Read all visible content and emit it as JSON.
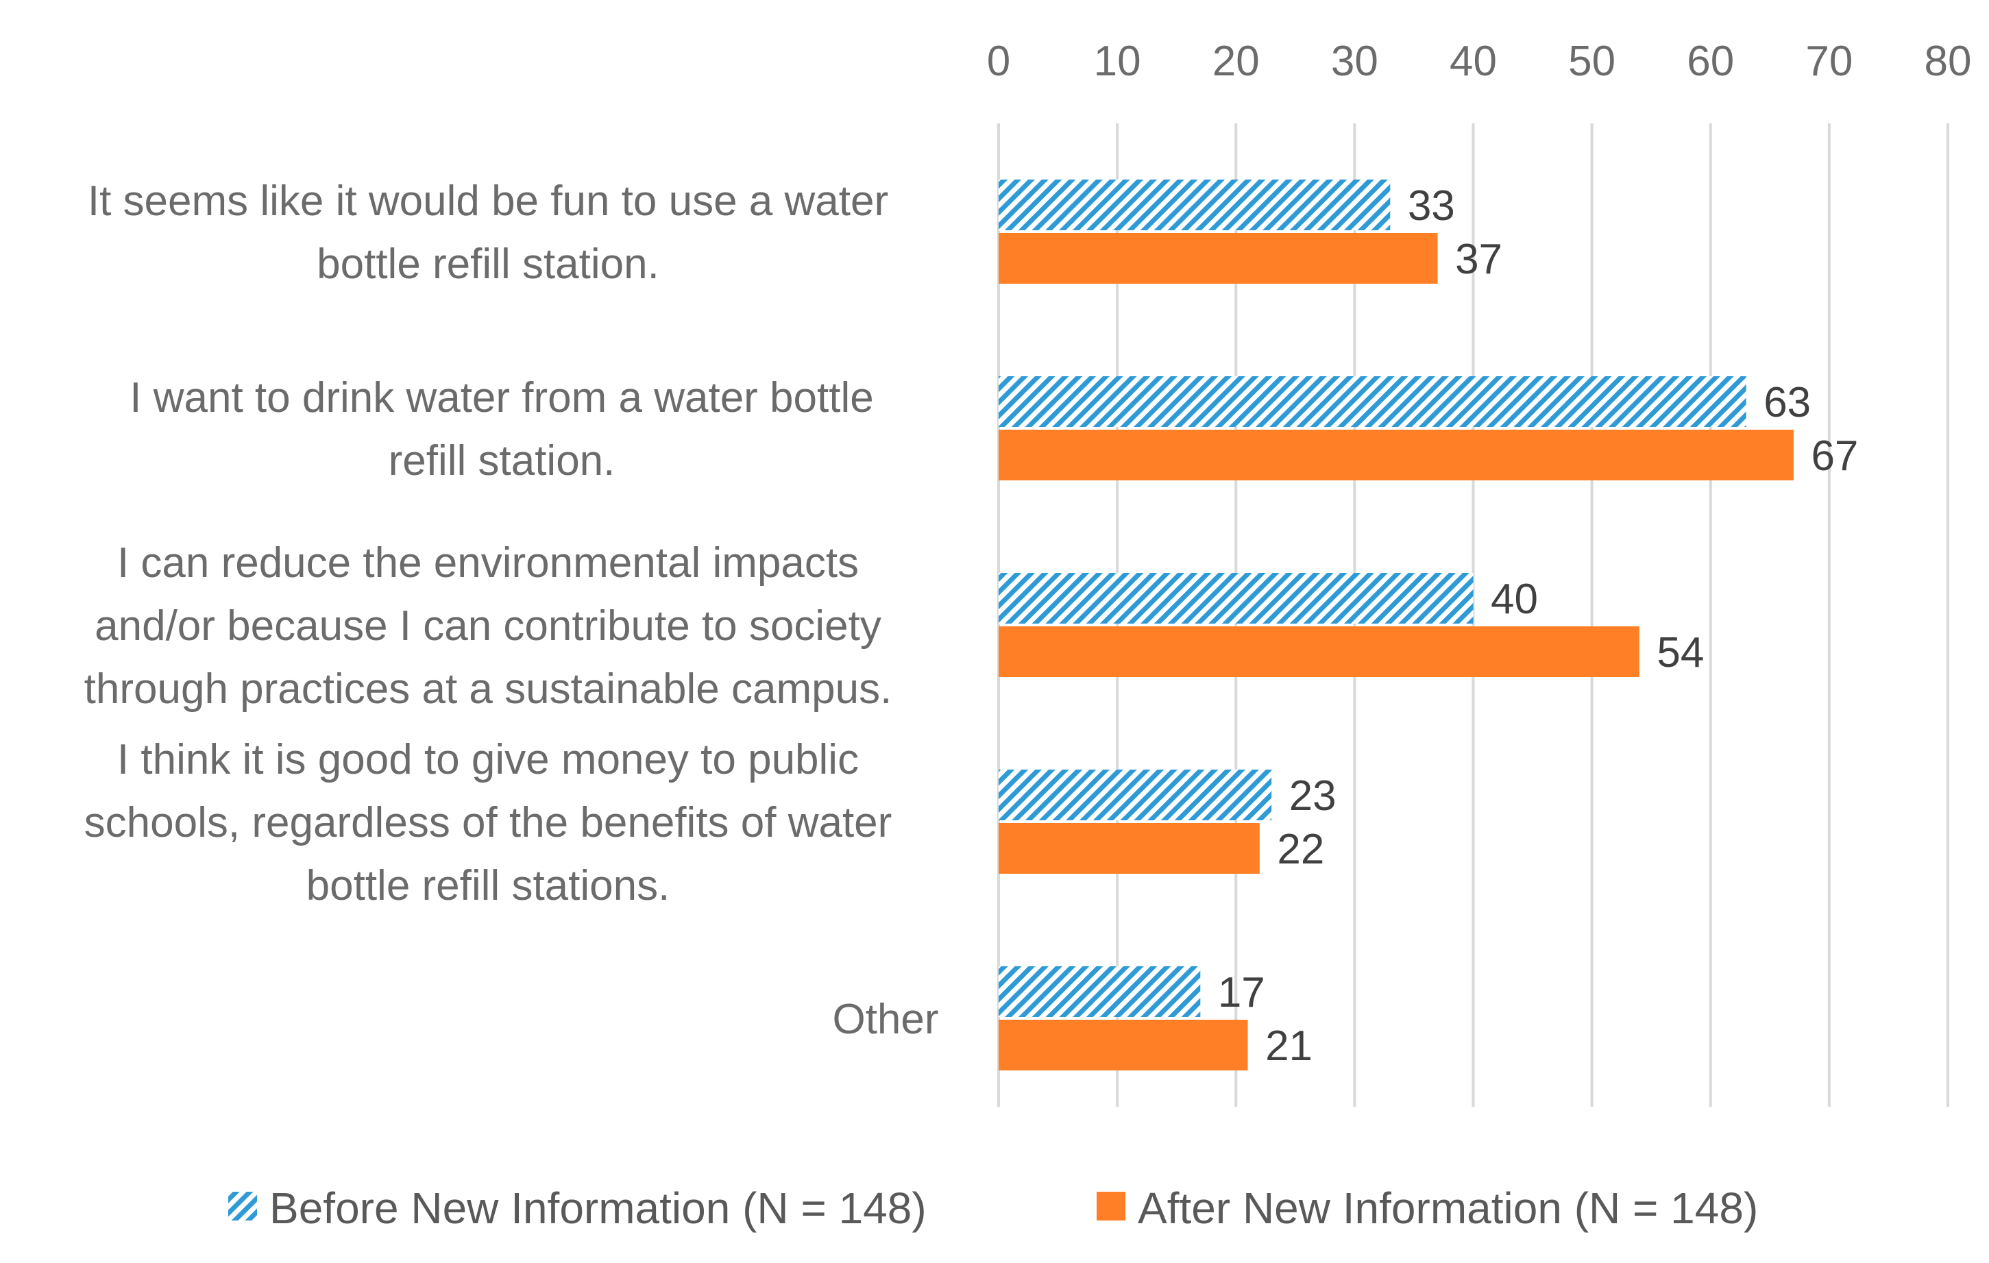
{
  "chart_data": {
    "type": "bar",
    "orientation": "horizontal",
    "categories": [
      [
        "It seems like it would be fun to use a water",
        "bottle refill station."
      ],
      [
        "I want to drink water from a water bottle",
        "refill station."
      ],
      [
        "I can reduce the environmental impacts",
        "and/or because I can contribute to society",
        "through practices at a sustainable campus."
      ],
      [
        "I think it is good to give money to public",
        "schools, regardless of the benefits of water",
        "bottle refill stations."
      ],
      [
        "Other"
      ]
    ],
    "series": [
      {
        "name": "Before New Information (N = 148)",
        "values": [
          33,
          63,
          40,
          23,
          17
        ],
        "color": "#2E9BD6",
        "pattern": "diagonal-hatch"
      },
      {
        "name": "After New Information (N = 148)",
        "values": [
          37,
          67,
          54,
          22,
          21
        ],
        "color": "#FF7F27",
        "pattern": "solid"
      }
    ],
    "xlim": [
      0,
      80
    ],
    "xticks": [
      0,
      10,
      20,
      30,
      40,
      50,
      60,
      70,
      80
    ],
    "xaxis_position": "top",
    "grid": true,
    "legend_position": "bottom",
    "title": "",
    "xlabel": "",
    "ylabel": ""
  }
}
